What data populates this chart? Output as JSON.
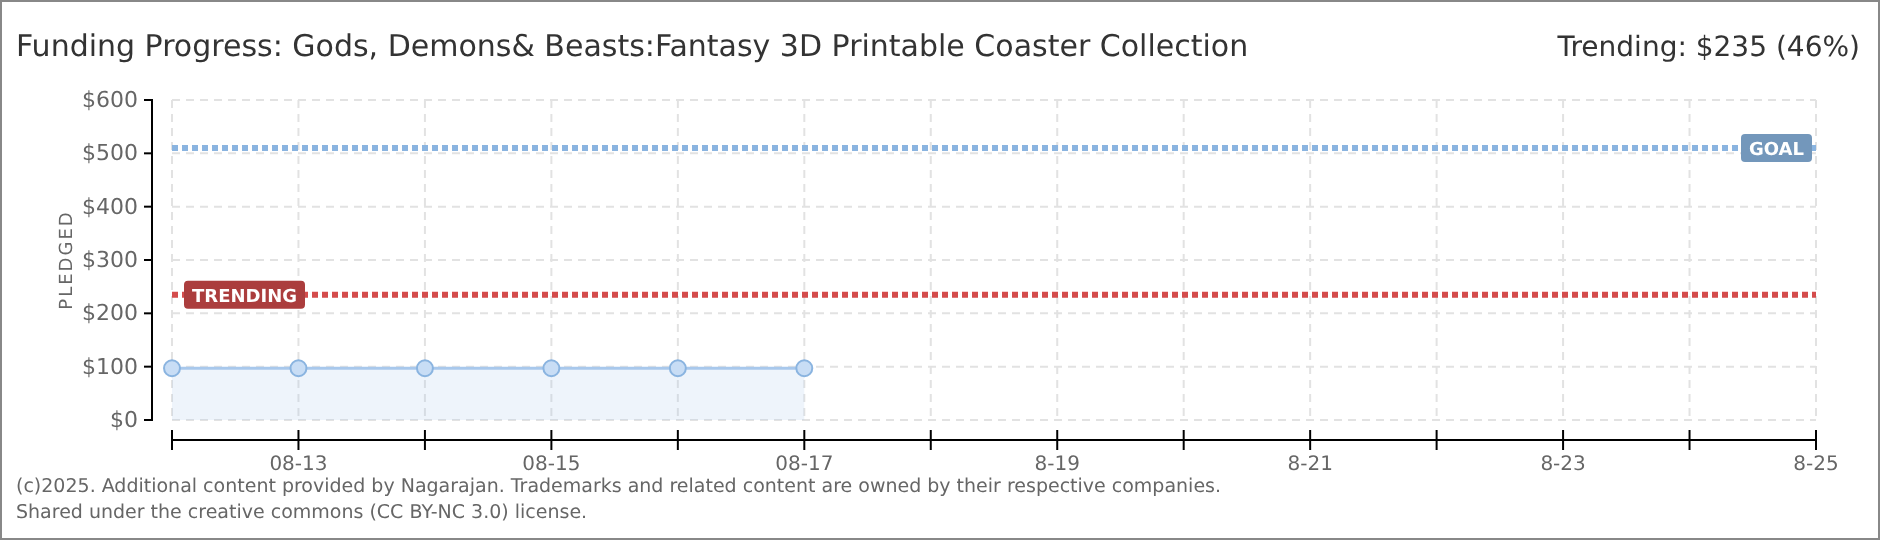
{
  "chart_data": {
    "type": "area",
    "title": "Funding Progress: Gods, Demons& Beasts:Fantasy 3D Printable Coaster Collection",
    "ylabel": "PLEDGED",
    "x": [
      "--08-12",
      "--08-13",
      "--08-14",
      "--08-15",
      "--08-16",
      "--08-17"
    ],
    "series": [
      {
        "color": "#a8c8ec",
        "values": [
          97,
          97,
          97,
          97,
          97,
          97
        ]
      }
    ],
    "xlim": [
      "--08-12",
      "--08-25"
    ],
    "xticks": [
      {
        "value": "--08-12",
        "label": null
      },
      {
        "value": "--08-13",
        "label": "08-13"
      },
      {
        "value": "--08-14",
        "label": null
      },
      {
        "value": "--08-15",
        "label": "08-15"
      },
      {
        "value": "--08-16",
        "label": null
      },
      {
        "value": "--08-17",
        "label": "08-17"
      },
      {
        "value": "--08-18",
        "label": null
      },
      {
        "value": "--08-19",
        "label": "8-19"
      },
      {
        "value": "--08-20",
        "label": null
      },
      {
        "value": "--08-21",
        "label": "8-21"
      },
      {
        "value": "--08-22",
        "label": null
      },
      {
        "value": "--08-23",
        "label": "8-23"
      },
      {
        "value": "--08-24",
        "label": null
      },
      {
        "value": "--08-25",
        "label": "8-25"
      }
    ],
    "ylim": [
      0,
      600
    ],
    "yticks": [
      {
        "value": 0,
        "label": "$0"
      },
      {
        "value": 100,
        "label": "$100"
      },
      {
        "value": 200,
        "label": "$200"
      },
      {
        "value": 300,
        "label": "$300"
      },
      {
        "value": 400,
        "label": "$400"
      },
      {
        "value": 500,
        "label": "$500"
      },
      {
        "value": 600,
        "label": "$600"
      }
    ],
    "ref_lines": [
      {
        "axis": "y",
        "value": 510,
        "label": "GOAL",
        "color": "#8ab4e0",
        "line_style": "dotted"
      },
      {
        "axis": "y",
        "value": 235,
        "label": "TRENDING",
        "color": "#d44c4c",
        "line_style": "dotted"
      }
    ],
    "grid": true,
    "marker": "circle",
    "annotations": [
      "Trending: $235 (46%)",
      "(c)2025. Additional content provided by Nagarajan. Trademarks and related content are owned by their respective companies.",
      "Shared under the creative commons (CC BY-NC 3.0) license."
    ]
  }
}
